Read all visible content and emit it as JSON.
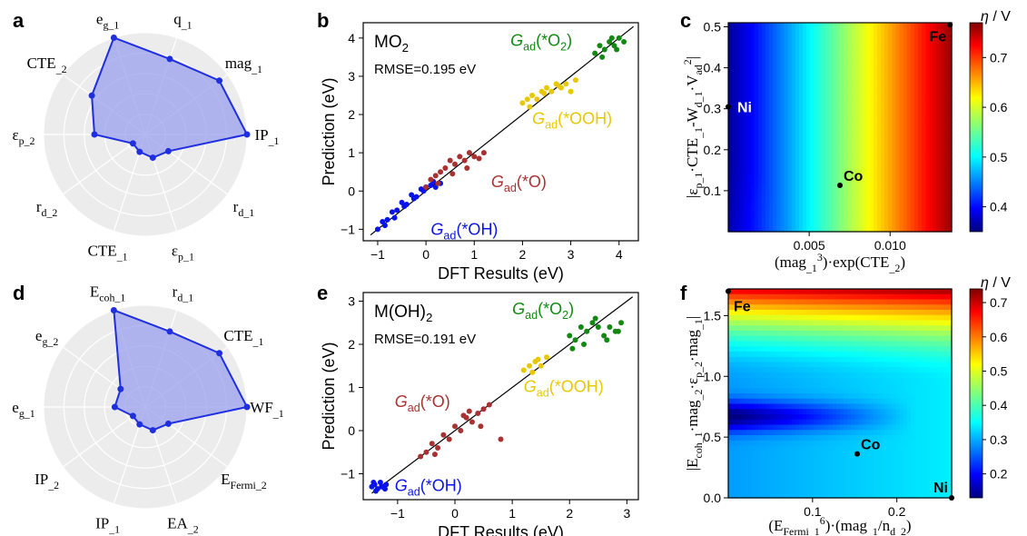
{
  "chart_data": [
    {
      "panel": "a",
      "type": "radar",
      "axes": [
        "q_1",
        "mag_1",
        "IP_1",
        "r_d_1",
        "ε_p_1",
        "CTE_1",
        "r_d_2",
        "ε_p_2",
        "CTE_2",
        "e_g_1"
      ],
      "axis_labels": [
        {
          "base": "q",
          "sub": "_1"
        },
        {
          "base": "mag",
          "sub": "_1"
        },
        {
          "base": "IP",
          "sub": "_1"
        },
        {
          "base": "r",
          "sub": "d_1"
        },
        {
          "base": "ε",
          "sub": "p_1"
        },
        {
          "base": "CTE",
          "sub": "_1"
        },
        {
          "base": "r",
          "sub": "d_2"
        },
        {
          "base": "ε",
          "sub": "p_2"
        },
        {
          "base": "CTE",
          "sub": "_2"
        },
        {
          "base": "e",
          "sub": "g_1"
        }
      ],
      "values": [
        0.78,
        0.9,
        1.0,
        0.28,
        0.24,
        0.18,
        0.15,
        0.5,
        0.65,
        1.0
      ],
      "rmax": 1.0,
      "rings": 5,
      "fill_color": "#9aa0ee",
      "line_color": "#1f2fe0"
    },
    {
      "panel": "b",
      "type": "scatter",
      "title": "MO2",
      "title_base": "MO",
      "title_sub": "2",
      "annotation": "RMSE=0.195 eV",
      "xlabel": "DFT Results (eV)",
      "ylabel": "Prediction (eV)",
      "xlim": [
        -1.3,
        4.4
      ],
      "ylim": [
        -1.3,
        4.4
      ],
      "xticks": [
        -1,
        0,
        1,
        2,
        3,
        4
      ],
      "yticks": [
        -1,
        0,
        1,
        2,
        3,
        4
      ],
      "series": [
        {
          "name": "Gad(*OH)",
          "label_base": "G",
          "label_sub": "ad",
          "label_rest": "(*OH)",
          "color": "#0a14e8",
          "x": [
            -1.0,
            -0.9,
            -0.8,
            -0.7,
            -0.6,
            -0.5,
            -0.4,
            -0.3,
            -0.2,
            -0.1,
            0.0,
            0.1,
            0.2,
            0.3,
            -0.85,
            -0.65,
            -0.45,
            -0.25,
            -0.05,
            0.15
          ],
          "y": [
            -1.0,
            -0.8,
            -0.75,
            -0.55,
            -0.5,
            -0.3,
            -0.35,
            -0.1,
            -0.15,
            0.05,
            0.1,
            0.15,
            0.1,
            0.2,
            -0.9,
            -0.7,
            -0.4,
            -0.2,
            0.0,
            0.25
          ]
        },
        {
          "name": "Gad(*O)",
          "label_base": "G",
          "label_sub": "ad",
          "label_rest": "(*O)",
          "color": "#a83232",
          "x": [
            0.0,
            0.1,
            0.2,
            0.3,
            0.4,
            0.5,
            0.6,
            0.7,
            0.8,
            0.9,
            1.0,
            1.1,
            1.2,
            0.25,
            0.55,
            0.85
          ],
          "y": [
            0.1,
            0.3,
            0.4,
            0.5,
            0.6,
            0.8,
            0.7,
            0.9,
            0.8,
            1.0,
            0.9,
            0.85,
            1.0,
            0.2,
            0.45,
            0.6
          ]
        },
        {
          "name": "Gad(*OOH)",
          "label_base": "G",
          "label_sub": "ad",
          "label_rest": "(*OOH)",
          "color": "#e8c800",
          "x": [
            2.0,
            2.1,
            2.2,
            2.3,
            2.4,
            2.5,
            2.6,
            2.7,
            2.8,
            2.9,
            3.0,
            3.1,
            2.45,
            2.75,
            2.15
          ],
          "y": [
            2.3,
            2.4,
            2.5,
            2.4,
            2.6,
            2.7,
            2.6,
            2.8,
            2.7,
            2.8,
            2.6,
            2.9,
            2.55,
            2.75,
            2.2
          ]
        },
        {
          "name": "Gad(*O2)",
          "label_base": "G",
          "label_sub": "ad",
          "label_rest": "(*O",
          "label_sub2": "2",
          "label_end": ")",
          "color": "#138813",
          "x": [
            3.5,
            3.6,
            3.7,
            3.8,
            3.9,
            4.0,
            4.1,
            3.65,
            3.85,
            3.95
          ],
          "y": [
            3.6,
            3.8,
            3.7,
            3.9,
            3.8,
            4.0,
            3.9,
            3.5,
            4.0,
            3.7
          ]
        }
      ]
    },
    {
      "panel": "c",
      "type": "heatmap",
      "xlabel": "(mag_1^3)·exp(CTE_2)",
      "ylabel": "|ε_p_1·CTE_1-W_d_1·V_ad^2|",
      "xlim": [
        0.0,
        0.0138
      ],
      "ylim": [
        0.0,
        0.51
      ],
      "xticks": [
        0.005,
        0.01
      ],
      "xtick_labels": [
        "0.005",
        "0.010"
      ],
      "yticks": [
        0.1,
        0.2,
        0.3,
        0.4,
        0.5
      ],
      "colorbar_label": "η / V",
      "colorbar_ticks": [
        0.4,
        0.5,
        0.6,
        0.7
      ],
      "clim": [
        0.35,
        0.77
      ],
      "points": [
        {
          "label": "Fe",
          "x": 0.0137,
          "y": 0.505
        },
        {
          "label": "Ni",
          "x": 0.0,
          "y": 0.305
        },
        {
          "label": "Co",
          "x": 0.0069,
          "y": 0.113
        }
      ]
    },
    {
      "panel": "d",
      "type": "radar",
      "axes": [
        "r_d_1",
        "CTE_1",
        "WF_1",
        "E_Fermi_2",
        "EA_2",
        "IP_1",
        "IP_2",
        "e_g_1",
        "e_g_2",
        "E_coh_1"
      ],
      "axis_labels": [
        {
          "base": "r",
          "sub": "d_1"
        },
        {
          "base": "CTE",
          "sub": "_1"
        },
        {
          "base": "WF",
          "sub": "_1"
        },
        {
          "base": "E",
          "sub": "Fermi_2"
        },
        {
          "base": "EA",
          "sub": "_2"
        },
        {
          "base": "IP",
          "sub": "_1"
        },
        {
          "base": "IP",
          "sub": "_2"
        },
        {
          "base": "e",
          "sub": "g_1"
        },
        {
          "base": "e",
          "sub": "g_2"
        },
        {
          "base": "E",
          "sub": "coh_1"
        }
      ],
      "values": [
        0.78,
        0.9,
        1.0,
        0.28,
        0.24,
        0.18,
        0.15,
        0.3,
        0.3,
        1.0
      ],
      "rmax": 1.0,
      "rings": 5,
      "fill_color": "#9aa0ee",
      "line_color": "#1f2fe0"
    },
    {
      "panel": "e",
      "type": "scatter",
      "title": "M(OH)2",
      "title_base": "M(OH)",
      "title_sub": "2",
      "annotation": "RMSE=0.191 eV",
      "xlabel": "DFT Results (eV)",
      "ylabel": "Prediction (eV)",
      "xlim": [
        -1.6,
        3.2
      ],
      "ylim": [
        -1.6,
        3.2
      ],
      "xticks": [
        -1,
        0,
        1,
        2,
        3
      ],
      "yticks": [
        -1,
        0,
        1,
        2,
        3
      ],
      "series": [
        {
          "name": "Gad(*OH)",
          "label_base": "G",
          "label_sub": "ad",
          "label_rest": "(*OH)",
          "color": "#0a14e8",
          "x": [
            -1.45,
            -1.4,
            -1.35,
            -1.3,
            -1.25,
            -1.2,
            -1.38,
            -1.28,
            -1.42,
            -1.22
          ],
          "y": [
            -1.3,
            -1.25,
            -1.35,
            -1.2,
            -1.3,
            -1.25,
            -1.4,
            -1.3,
            -1.2,
            -1.35
          ]
        },
        {
          "name": "Gad(*O)",
          "label_base": "G",
          "label_sub": "ad",
          "label_rest": "(*O)",
          "color": "#a83232",
          "x": [
            -0.6,
            -0.5,
            -0.4,
            -0.3,
            -0.2,
            -0.1,
            0.0,
            0.1,
            0.2,
            0.3,
            0.4,
            0.5,
            0.6,
            -0.35,
            0.15,
            0.45,
            0.8,
            0.25
          ],
          "y": [
            -0.6,
            -0.5,
            -0.3,
            -0.4,
            -0.1,
            -0.2,
            0.1,
            0.0,
            0.3,
            0.2,
            0.4,
            0.5,
            0.6,
            -0.55,
            0.35,
            0.1,
            -0.2,
            0.45
          ]
        },
        {
          "name": "Gad(*OOH)",
          "label_base": "G",
          "label_sub": "ad",
          "label_rest": "(*OOH)",
          "color": "#e8c800",
          "x": [
            1.2,
            1.3,
            1.4,
            1.5,
            1.6,
            1.35,
            1.45
          ],
          "y": [
            1.4,
            1.5,
            1.6,
            1.5,
            1.7,
            1.35,
            1.65
          ]
        },
        {
          "name": "Gad(*O2)",
          "label_base": "G",
          "label_sub": "ad",
          "label_rest": "(*O",
          "label_sub2": "2",
          "label_end": ")",
          "color": "#138813",
          "x": [
            2.0,
            2.1,
            2.2,
            2.3,
            2.4,
            2.5,
            2.6,
            2.7,
            2.8,
            2.9,
            2.05,
            2.25,
            2.45,
            2.65,
            2.85
          ],
          "y": [
            2.2,
            2.1,
            2.4,
            2.3,
            2.5,
            2.4,
            2.2,
            2.4,
            2.3,
            2.5,
            1.9,
            2.0,
            2.6,
            2.1,
            2.3
          ]
        }
      ]
    },
    {
      "panel": "f",
      "type": "heatmap",
      "xlabel": "(E_Fermi_1^6)·(mag_1/n_d_2)",
      "ylabel": "|E_coh_1·mag_2·ε_p_2·mag_1|",
      "xlim": [
        0.0,
        0.265
      ],
      "ylim": [
        0.0,
        1.72
      ],
      "xticks": [
        0.1,
        0.2
      ],
      "xtick_labels": [
        "0.1",
        "0.2"
      ],
      "yticks": [
        0.0,
        0.5,
        1.0,
        1.5
      ],
      "ytick_labels": [
        "0.0",
        "0.5",
        "1.0",
        "1.5"
      ],
      "colorbar_label": "η / V",
      "colorbar_ticks": [
        0.2,
        0.3,
        0.4,
        0.5,
        0.6,
        0.7
      ],
      "clim": [
        0.13,
        0.74
      ],
      "points": [
        {
          "label": "Fe",
          "x": 0.0,
          "y": 1.7
        },
        {
          "label": "Co",
          "x": 0.153,
          "y": 0.362
        },
        {
          "label": "Ni",
          "x": 0.265,
          "y": 0.0
        }
      ]
    }
  ],
  "panel_letters": [
    "a",
    "b",
    "c",
    "d",
    "e",
    "f"
  ],
  "colorbar_title": "η / V"
}
